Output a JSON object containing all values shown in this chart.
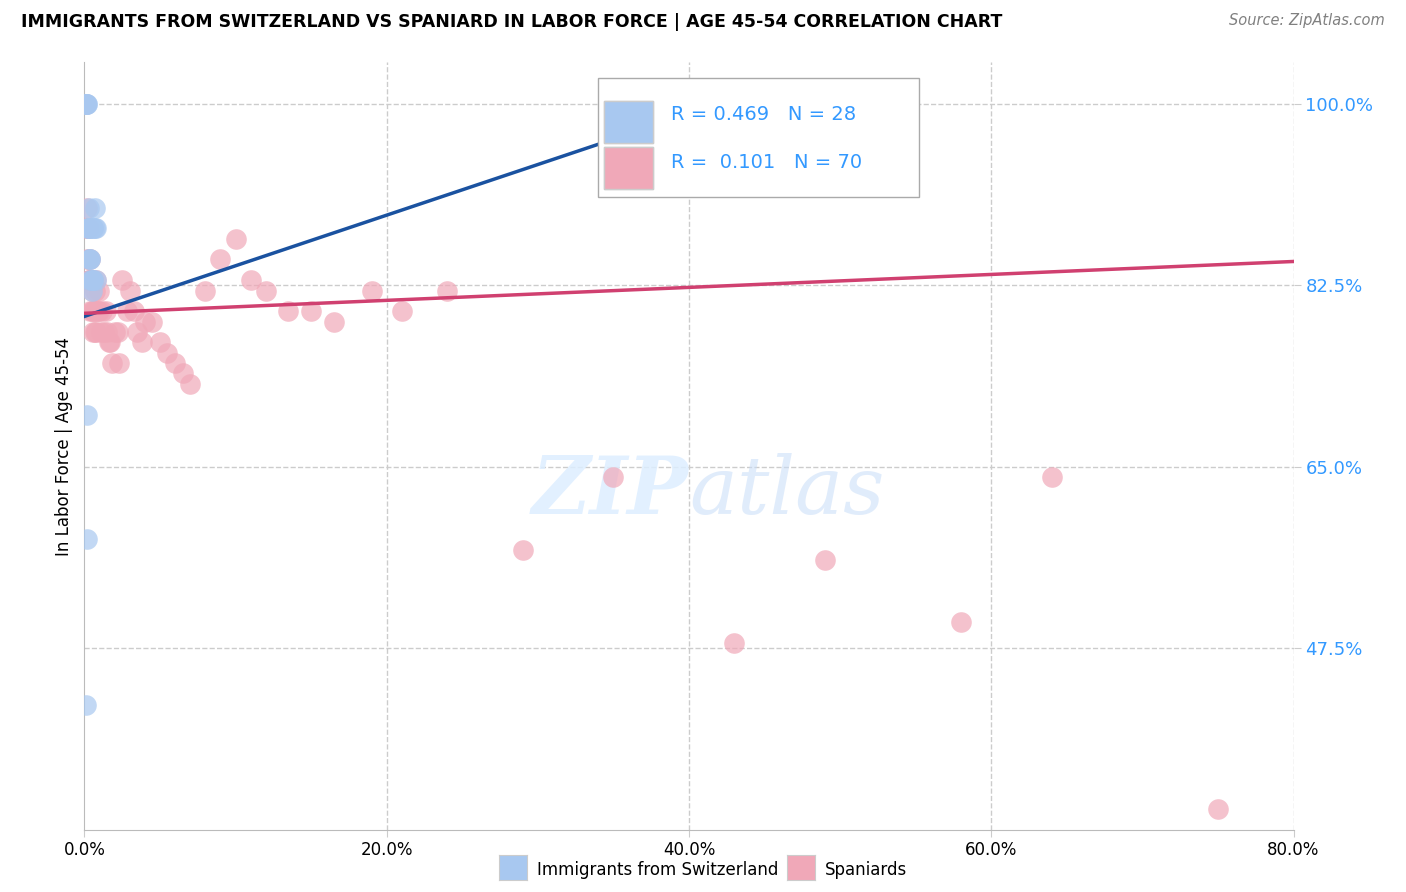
{
  "title": "IMMIGRANTS FROM SWITZERLAND VS SPANIARD IN LABOR FORCE | AGE 45-54 CORRELATION CHART",
  "source": "Source: ZipAtlas.com",
  "ylabel": "In Labor Force | Age 45-54",
  "xlim": [
    0.0,
    0.8
  ],
  "ylim": [
    0.3,
    1.04
  ],
  "xtick_labels": [
    "0.0%",
    "20.0%",
    "40.0%",
    "60.0%",
    "80.0%"
  ],
  "xtick_values": [
    0.0,
    0.2,
    0.4,
    0.6,
    0.8
  ],
  "ytick_right_labels": [
    "47.5%",
    "65.0%",
    "82.5%",
    "100.0%"
  ],
  "ytick_right_values": [
    0.475,
    0.65,
    0.825,
    1.0
  ],
  "grid_color": "#cccccc",
  "background_color": "#ffffff",
  "blue_color": "#a8c8f0",
  "pink_color": "#f0a8b8",
  "blue_line_color": "#1a52a0",
  "pink_line_color": "#d04070",
  "legend_R_blue": "0.469",
  "legend_N_blue": "28",
  "legend_R_pink": "0.101",
  "legend_N_pink": "70",
  "blue_line_x0": 0.0,
  "blue_line_y0": 0.795,
  "blue_line_x1": 0.43,
  "blue_line_y1": 1.005,
  "pink_line_x0": 0.0,
  "pink_line_y0": 0.798,
  "pink_line_x1": 0.8,
  "pink_line_y1": 0.848,
  "blue_x": [
    0.001,
    0.001,
    0.001,
    0.002,
    0.002,
    0.002,
    0.003,
    0.003,
    0.003,
    0.003,
    0.003,
    0.004,
    0.004,
    0.004,
    0.005,
    0.005,
    0.005,
    0.006,
    0.006,
    0.006,
    0.006,
    0.007,
    0.007,
    0.008,
    0.008,
    0.002,
    0.002,
    0.001
  ],
  "blue_y": [
    1.0,
    1.0,
    1.0,
    1.0,
    1.0,
    0.88,
    0.9,
    0.88,
    0.88,
    0.88,
    0.85,
    0.85,
    0.85,
    0.83,
    0.83,
    0.83,
    0.82,
    0.83,
    0.83,
    0.88,
    0.88,
    0.9,
    0.88,
    0.88,
    0.83,
    0.7,
    0.58,
    0.42
  ],
  "pink_x": [
    0.001,
    0.001,
    0.002,
    0.002,
    0.002,
    0.003,
    0.003,
    0.003,
    0.003,
    0.004,
    0.004,
    0.004,
    0.004,
    0.005,
    0.005,
    0.005,
    0.006,
    0.006,
    0.006,
    0.007,
    0.007,
    0.007,
    0.008,
    0.008,
    0.008,
    0.009,
    0.01,
    0.01,
    0.011,
    0.012,
    0.013,
    0.014,
    0.015,
    0.016,
    0.017,
    0.018,
    0.02,
    0.022,
    0.023,
    0.025,
    0.028,
    0.03,
    0.033,
    0.035,
    0.038,
    0.04,
    0.045,
    0.05,
    0.055,
    0.06,
    0.065,
    0.07,
    0.08,
    0.09,
    0.1,
    0.11,
    0.12,
    0.135,
    0.15,
    0.165,
    0.19,
    0.21,
    0.24,
    0.29,
    0.35,
    0.43,
    0.49,
    0.58,
    0.64,
    0.75
  ],
  "pink_y": [
    1.0,
    0.88,
    0.9,
    0.88,
    0.85,
    0.88,
    0.85,
    0.83,
    0.83,
    0.85,
    0.83,
    0.83,
    0.8,
    0.83,
    0.82,
    0.8,
    0.83,
    0.8,
    0.78,
    0.82,
    0.8,
    0.78,
    0.83,
    0.8,
    0.78,
    0.8,
    0.82,
    0.8,
    0.78,
    0.8,
    0.78,
    0.8,
    0.78,
    0.77,
    0.77,
    0.75,
    0.78,
    0.78,
    0.75,
    0.83,
    0.8,
    0.82,
    0.8,
    0.78,
    0.77,
    0.79,
    0.79,
    0.77,
    0.76,
    0.75,
    0.74,
    0.73,
    0.82,
    0.85,
    0.87,
    0.83,
    0.82,
    0.8,
    0.8,
    0.79,
    0.82,
    0.8,
    0.82,
    0.57,
    0.64,
    0.48,
    0.56,
    0.5,
    0.64,
    0.32
  ]
}
